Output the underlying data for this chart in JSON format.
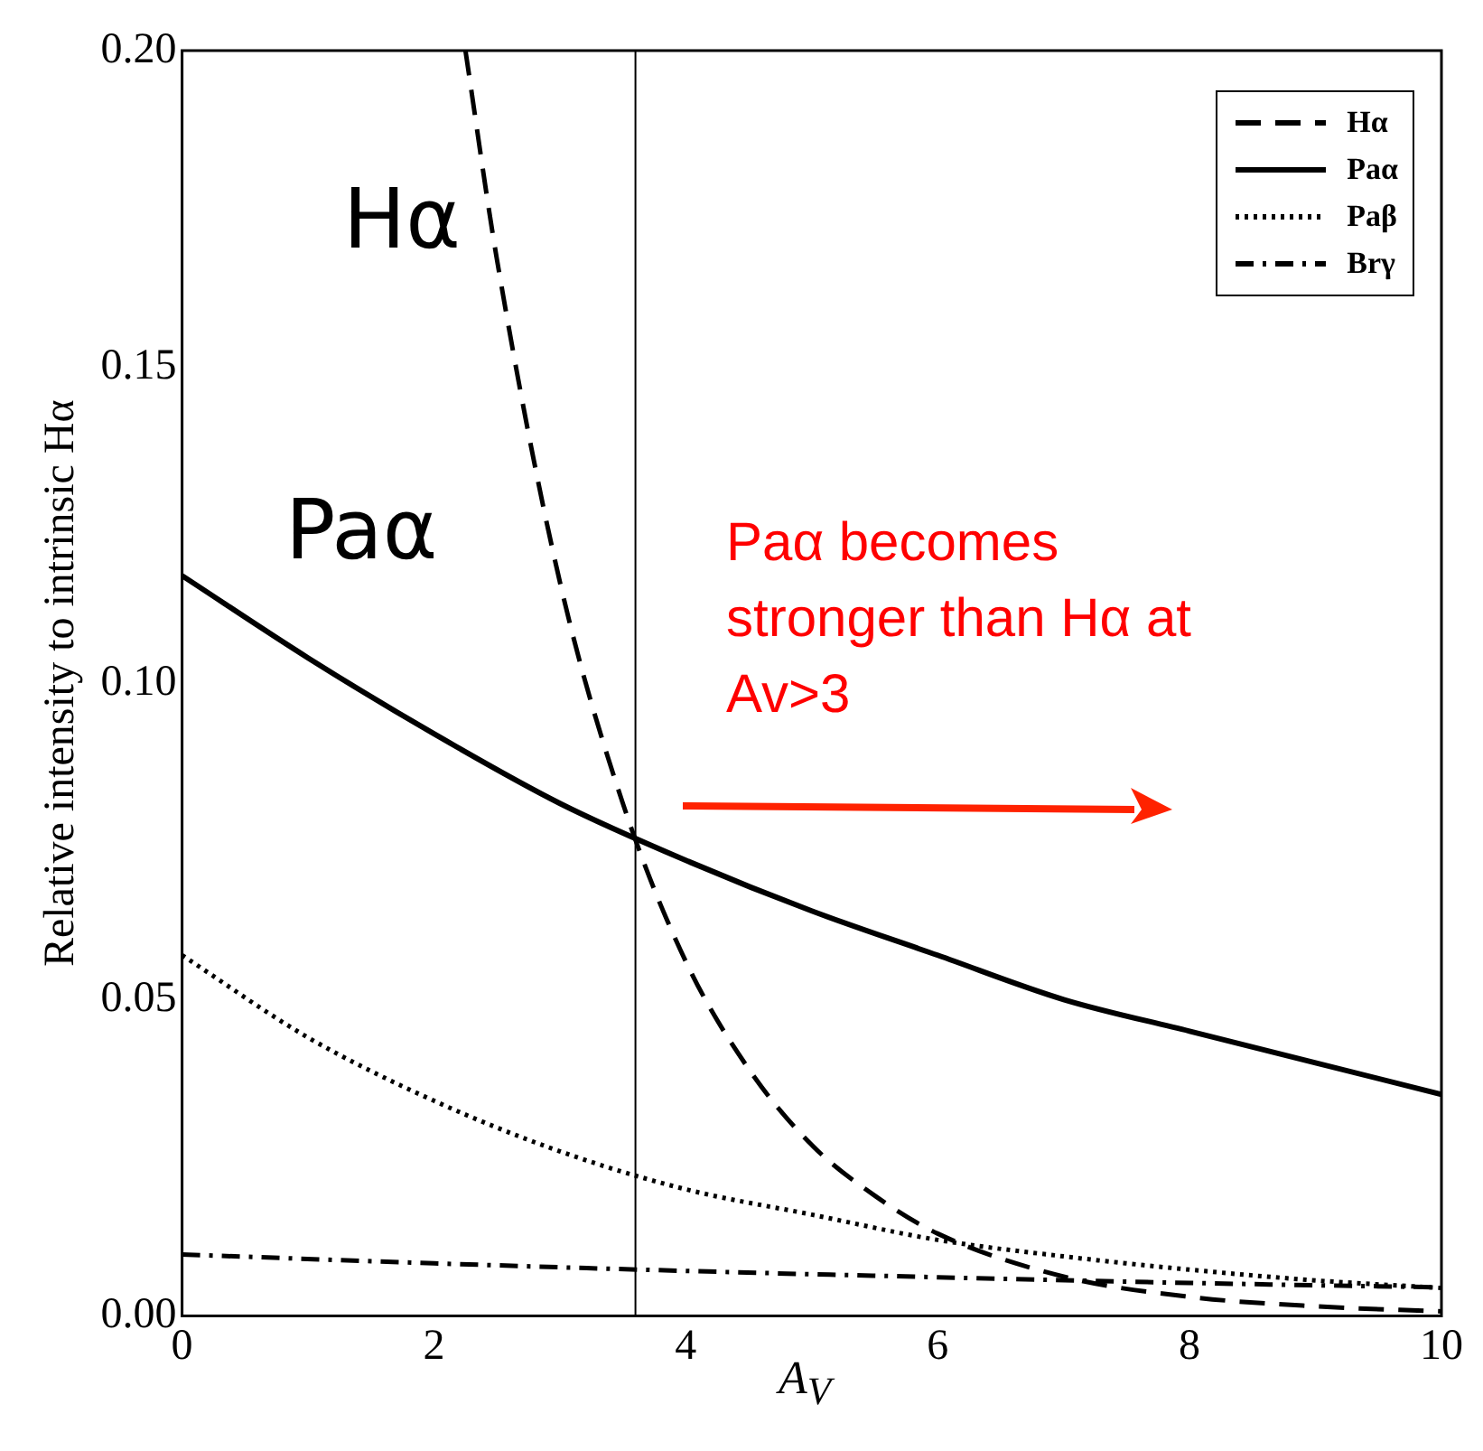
{
  "chart_data": {
    "type": "line",
    "xlabel": "A$_{V}$",
    "ylabel": "Relative intensity to intrinsic Hα",
    "xlim": [
      0,
      10
    ],
    "xticks": [
      0,
      2,
      4,
      6,
      8,
      10
    ],
    "ylim": [
      0,
      0.2
    ],
    "yticks": [
      {
        "value": 0,
        "label": "0.00"
      },
      0.05,
      {
        "value": 0.1,
        "label": "0.10"
      },
      0.15,
      {
        "value": 0.2,
        "label": "0.20"
      }
    ],
    "grid": false,
    "legend": "top right",
    "marker": "none",
    "series": [
      {
        "name": "Hα",
        "color": "#000000",
        "line_style": "dashed",
        "x": [
          2.25,
          2.5,
          3,
          3.5,
          4,
          4.5,
          5,
          5.5,
          6,
          7,
          8,
          9,
          10
        ],
        "values": [
          0.2,
          0.167,
          0.116,
          0.081,
          0.056,
          0.039,
          0.027,
          0.019,
          0.013,
          0.0062,
          0.003,
          0.0015,
          0.0007
        ]
      },
      {
        "name": "Paα",
        "color": "#000000",
        "line_style": "solid",
        "x": [
          0,
          1,
          2,
          3,
          4,
          5,
          6,
          7,
          8,
          9,
          10
        ],
        "values": [
          0.117,
          0.104,
          0.092,
          0.081,
          0.072,
          0.064,
          0.057,
          0.05,
          0.045,
          0.04,
          0.035
        ]
      },
      {
        "name": "Paβ",
        "color": "#000000",
        "line_style": "dotted",
        "x": [
          0,
          1,
          2,
          3,
          4,
          5,
          6,
          7,
          8,
          9,
          10
        ],
        "values": [
          0.057,
          0.044,
          0.034,
          0.026,
          0.02,
          0.016,
          0.012,
          0.0094,
          0.0073,
          0.0056,
          0.0044
        ]
      },
      {
        "name": "Brγ",
        "color": "#000000",
        "line_style": "dashdot",
        "x": [
          0,
          2,
          4,
          6,
          8,
          10
        ],
        "values": [
          0.0097,
          0.0083,
          0.0071,
          0.0061,
          0.0052,
          0.0045
        ]
      }
    ],
    "ref_lines": [
      {
        "axis": "x",
        "value": 3.6,
        "color": "#000000"
      }
    ],
    "annotations": [
      "Hα",
      "Paα",
      "Paα becomes stronger than Hα at Av>3"
    ]
  }
}
